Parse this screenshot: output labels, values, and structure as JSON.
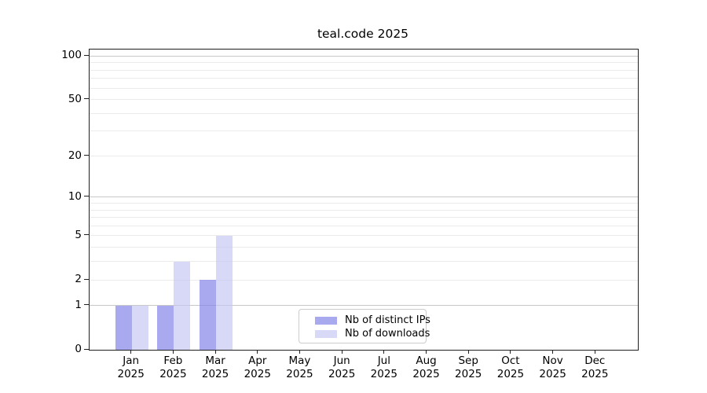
{
  "chart_data": {
    "type": "bar",
    "title": "teal.code 2025",
    "x": {
      "categories": [
        "Jan",
        "Feb",
        "Mar",
        "Apr",
        "May",
        "Jun",
        "Jul",
        "Aug",
        "Sep",
        "Oct",
        "Nov",
        "Dec"
      ],
      "sublabel": "2025"
    },
    "series": [
      {
        "name": "Nb of distinct IPs",
        "color": "#8585ea",
        "alpha": 0.7,
        "values": [
          1,
          1,
          2,
          0,
          0,
          0,
          0,
          0,
          0,
          0,
          0,
          0
        ]
      },
      {
        "name": "Nb of downloads",
        "color": "#c3c3f2",
        "alpha": 0.65,
        "values": [
          1,
          3,
          5,
          0,
          0,
          0,
          0,
          0,
          0,
          0,
          0,
          0
        ]
      }
    ],
    "y_axis": {
      "scale": "log10(1+v)",
      "tick_values": [
        0,
        1,
        2,
        5,
        10,
        20,
        50,
        100
      ],
      "minor_tick_values": [
        3,
        4,
        6,
        7,
        8,
        9,
        30,
        40,
        60,
        70,
        80,
        90
      ],
      "major_grid_values": [
        1,
        10,
        100
      ],
      "top_value": 111
    },
    "grid": true,
    "legend_position": "bottom-center"
  },
  "colors": {
    "background": "#ffffff",
    "spine": "#1f1f1f",
    "grid_major": "#c8c8c8",
    "grid_minor": "#ebebeb",
    "legend_border": "#cccccc",
    "text": "#000000"
  }
}
